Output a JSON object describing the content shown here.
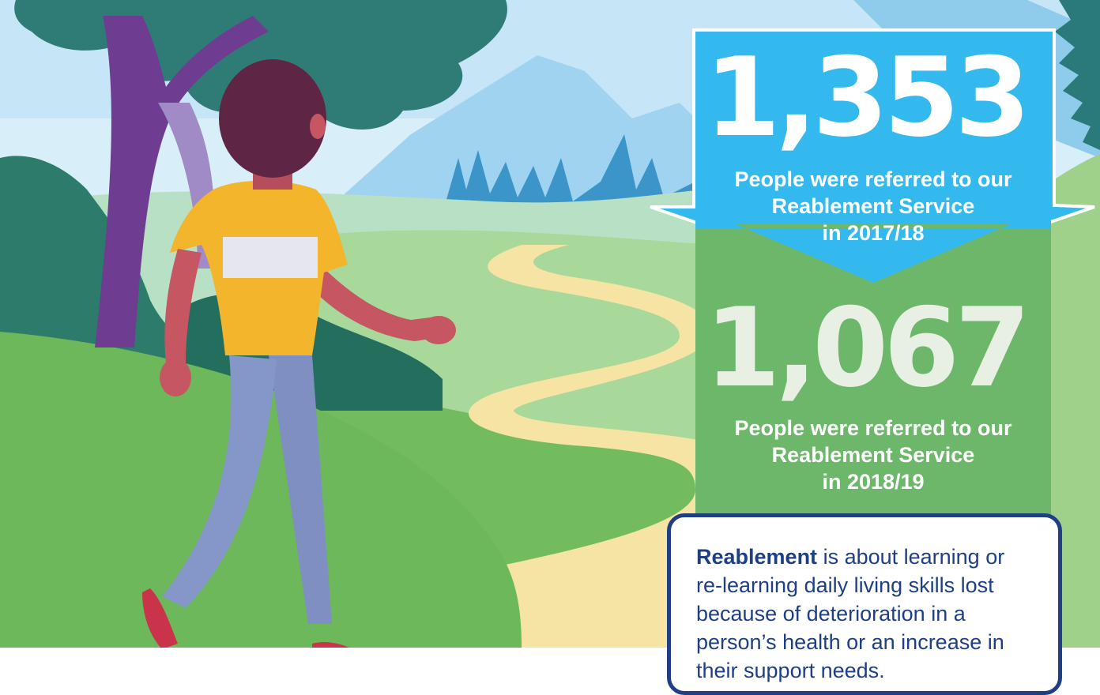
{
  "stats": {
    "top_value": "1,353",
    "top_caption_lines": [
      "People were referred to our",
      "Reablement Service",
      "in 2017/18"
    ],
    "bottom_value": "1,067",
    "bottom_caption_lines": [
      "People were referred to our",
      "Reablement Service",
      "in 2018/19"
    ]
  },
  "info": {
    "term": "Reablement",
    "text": " is about learning or re-learning daily living skills lost because of deterioration in a person’s health or an increase in their support needs."
  },
  "colors": {
    "sky": "#c6e6f7",
    "arrow_blue": "#33b9ed",
    "panel_green": "#6db76b",
    "box_border": "#1e3f86",
    "path": "#f6e4a4",
    "shirt": "#f3b52c"
  },
  "illustration": {
    "icon": "walking-person-landscape-illustration"
  }
}
